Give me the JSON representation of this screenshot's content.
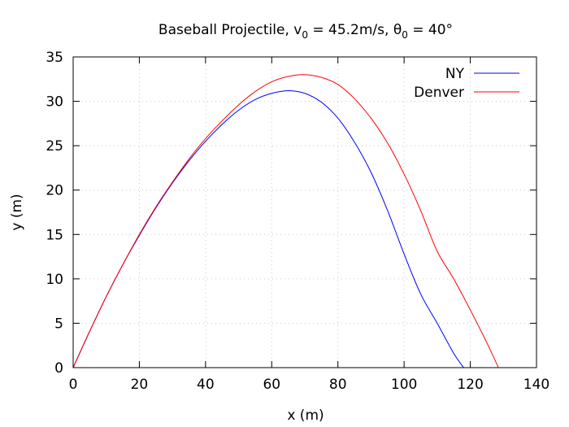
{
  "chart_data": {
    "type": "line",
    "title": {
      "prefix": "Baseball Projectile, v",
      "v_subscript": "0",
      "middle": " = 45.2m/s, θ",
      "theta_subscript": "0",
      "suffix": " = 40°"
    },
    "xlabel": "x (m)",
    "ylabel": "y (m)",
    "xlim": [
      0,
      140
    ],
    "ylim": [
      0,
      35
    ],
    "xticks": [
      0,
      20,
      40,
      60,
      80,
      100,
      120,
      140
    ],
    "yticks": [
      0,
      5,
      10,
      15,
      20,
      25,
      30,
      35
    ],
    "grid": true,
    "legend_position": "top-right",
    "series": [
      {
        "name": "NY",
        "color": "#0000ff",
        "x": [
          0,
          5,
          10,
          15,
          20,
          25,
          30,
          35,
          40,
          45,
          50,
          55,
          60,
          65,
          70,
          75,
          80,
          85,
          90,
          95,
          100,
          105,
          110,
          115,
          118
        ],
        "y": [
          0,
          4.1,
          8.0,
          11.6,
          14.9,
          18.0,
          20.8,
          23.3,
          25.5,
          27.4,
          29.0,
          30.2,
          30.9,
          31.2,
          30.9,
          29.9,
          28.1,
          25.4,
          22.0,
          17.7,
          12.8,
          8.3,
          5.0,
          1.6,
          0
        ]
      },
      {
        "name": "Denver",
        "color": "#ff0000",
        "x": [
          0,
          5,
          10,
          15,
          20,
          25,
          30,
          35,
          40,
          45,
          50,
          55,
          60,
          65,
          70,
          75,
          80,
          85,
          90,
          95,
          100,
          105,
          110,
          115,
          120,
          125,
          128.5
        ],
        "y": [
          0,
          4.1,
          8.0,
          11.6,
          15.0,
          18.1,
          20.9,
          23.5,
          25.8,
          27.8,
          29.6,
          31.1,
          32.2,
          32.8,
          33.0,
          32.7,
          31.9,
          30.3,
          28.1,
          25.3,
          21.8,
          17.7,
          13.1,
          10.0,
          6.5,
          2.8,
          0
        ]
      }
    ]
  }
}
